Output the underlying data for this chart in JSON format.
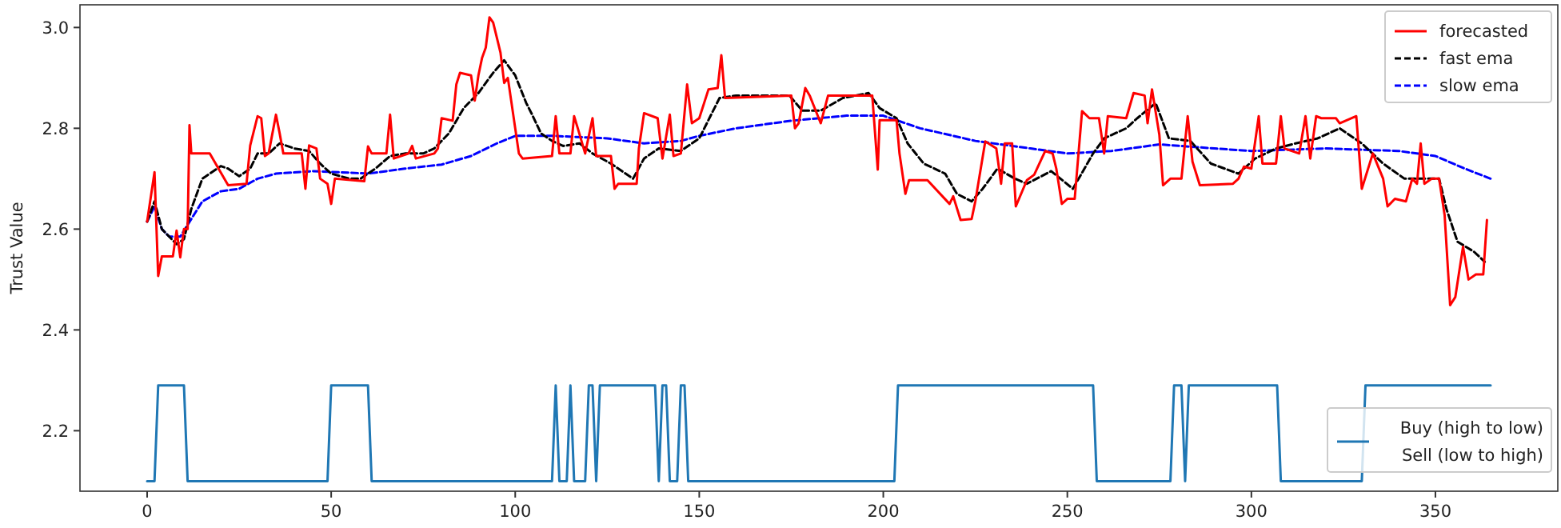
{
  "chart_data": {
    "type": "line",
    "ylabel": "Trust Value",
    "xlim": [
      -18.25,
      383.25
    ],
    "ylim": [
      2.08,
      3.045
    ],
    "xticks": [
      0,
      50,
      100,
      150,
      200,
      250,
      300,
      350
    ],
    "yticks": [
      {
        "value": 2.2,
        "label": "2.2"
      },
      {
        "value": 2.4,
        "label": "2.4"
      },
      {
        "value": 2.6,
        "label": "2.6"
      },
      {
        "value": 2.8,
        "label": "2.8"
      },
      {
        "value": 3,
        "label": "3.0"
      }
    ],
    "grid": false,
    "legend": "right",
    "marker": "none",
    "series": [
      {
        "name": "forecasted",
        "color": "#ff0000",
        "line_style": "solid",
        "x": [
          0,
          2,
          3,
          4,
          7,
          8,
          9,
          10,
          11,
          11.5,
          12,
          17,
          22,
          27,
          28,
          30,
          31,
          32,
          33,
          35,
          36,
          37,
          42,
          43,
          44,
          46,
          47,
          49,
          50,
          51,
          59,
          60,
          61,
          65,
          66,
          67,
          71,
          72,
          73,
          78,
          79,
          80,
          83,
          84,
          85,
          88,
          89,
          90,
          91,
          92,
          93,
          94,
          95,
          96,
          97,
          98,
          99,
          100,
          101,
          102,
          110,
          111,
          112,
          115,
          116,
          117,
          119,
          121,
          122,
          126,
          127,
          128,
          133,
          133.6,
          135,
          138.7,
          140,
          142,
          143,
          145,
          146.7,
          148,
          150,
          152.5,
          155,
          156,
          157,
          175,
          176,
          177,
          178.8,
          180,
          183,
          185,
          197,
          198.5,
          199,
          203.6,
          204.4,
          206,
          207,
          212,
          218,
          219,
          221,
          224,
          225,
          227.7,
          230.7,
          232,
          233,
          235,
          236,
          239,
          241,
          244,
          246,
          247,
          248.5,
          250,
          252,
          254,
          256,
          258.6,
          260,
          261,
          266,
          268,
          271,
          271.8,
          273,
          275,
          276,
          278,
          281,
          282.7,
          284,
          286,
          295,
          296.5,
          298,
          300,
          302,
          303,
          306.7,
          308,
          309,
          313,
          314.7,
          316,
          317.6,
          319,
          323,
          324,
          328.5,
          330,
          333,
          335.8,
          337,
          339,
          342,
          343.7,
          345,
          346,
          347,
          349,
          351,
          352.5,
          354,
          355.4,
          357.5,
          359,
          361,
          363,
          364
        ],
        "values": [
          2.615,
          2.713,
          2.507,
          2.546,
          2.546,
          2.597,
          2.544,
          2.6,
          2.6,
          2.806,
          2.75,
          2.75,
          2.687,
          2.69,
          2.766,
          2.824,
          2.82,
          2.745,
          2.75,
          2.827,
          2.79,
          2.75,
          2.75,
          2.68,
          2.766,
          2.76,
          2.7,
          2.69,
          2.65,
          2.7,
          2.695,
          2.764,
          2.75,
          2.75,
          2.827,
          2.74,
          2.75,
          2.765,
          2.74,
          2.75,
          2.76,
          2.82,
          2.815,
          2.887,
          2.91,
          2.905,
          2.855,
          2.905,
          2.94,
          2.96,
          3.02,
          3.01,
          2.98,
          2.95,
          2.89,
          2.9,
          2.85,
          2.8,
          2.75,
          2.74,
          2.745,
          2.824,
          2.75,
          2.75,
          2.824,
          2.8,
          2.75,
          2.82,
          2.745,
          2.745,
          2.68,
          2.69,
          2.69,
          2.76,
          2.83,
          2.82,
          2.74,
          2.827,
          2.745,
          2.75,
          2.887,
          2.81,
          2.82,
          2.877,
          2.88,
          2.945,
          2.86,
          2.865,
          2.8,
          2.81,
          2.88,
          2.865,
          2.81,
          2.865,
          2.865,
          2.718,
          2.816,
          2.816,
          2.75,
          2.67,
          2.697,
          2.697,
          2.65,
          2.665,
          2.618,
          2.62,
          2.655,
          2.774,
          2.76,
          2.69,
          2.77,
          2.77,
          2.645,
          2.697,
          2.708,
          2.755,
          2.75,
          2.72,
          2.65,
          2.66,
          2.66,
          2.834,
          2.82,
          2.82,
          2.75,
          2.824,
          2.82,
          2.87,
          2.865,
          2.81,
          2.877,
          2.787,
          2.687,
          2.7,
          2.7,
          2.824,
          2.734,
          2.687,
          2.69,
          2.7,
          2.724,
          2.72,
          2.824,
          2.73,
          2.73,
          2.824,
          2.76,
          2.75,
          2.824,
          2.74,
          2.824,
          2.82,
          2.82,
          2.81,
          2.824,
          2.68,
          2.75,
          2.7,
          2.645,
          2.66,
          2.655,
          2.7,
          2.69,
          2.77,
          2.69,
          2.7,
          2.7,
          2.628,
          2.449,
          2.465,
          2.565,
          2.5,
          2.51,
          2.51,
          2.618
        ]
      },
      {
        "name": "fast ema",
        "color": "#000000",
        "line_style": "dashed",
        "x": [
          0,
          2,
          4,
          8,
          10,
          12,
          15,
          20,
          22,
          25,
          28,
          30,
          33,
          36,
          40,
          44,
          47,
          50,
          55,
          58,
          62,
          66,
          70,
          75,
          78,
          82,
          86,
          90,
          94,
          97,
          100,
          103,
          104.4,
          107,
          110,
          113,
          117.5,
          121,
          126,
          132,
          135,
          139,
          145,
          150,
          155.5,
          160,
          174.5,
          178,
          183,
          189,
          196,
          199,
          203.6,
          206.6,
          211,
          216.8,
          220,
          224,
          227,
          231,
          235.8,
          239,
          245.6,
          251.5,
          257,
          260,
          266,
          269,
          274,
          277.6,
          283.4,
          289,
          296.5,
          301,
          306.7,
          312,
          318,
          324,
          330,
          335.8,
          341.6,
          347,
          351,
          353,
          356,
          360.5,
          363.4
        ],
        "values": [
          2.615,
          2.655,
          2.6,
          2.57,
          2.58,
          2.64,
          2.7,
          2.725,
          2.72,
          2.705,
          2.72,
          2.75,
          2.75,
          2.77,
          2.76,
          2.755,
          2.73,
          2.71,
          2.7,
          2.7,
          2.72,
          2.745,
          2.75,
          2.75,
          2.76,
          2.79,
          2.84,
          2.87,
          2.91,
          2.935,
          2.905,
          2.85,
          2.83,
          2.79,
          2.775,
          2.765,
          2.77,
          2.75,
          2.73,
          2.7,
          2.74,
          2.76,
          2.755,
          2.78,
          2.86,
          2.865,
          2.865,
          2.835,
          2.835,
          2.86,
          2.87,
          2.84,
          2.82,
          2.77,
          2.73,
          2.71,
          2.67,
          2.655,
          2.68,
          2.72,
          2.7,
          2.69,
          2.715,
          2.68,
          2.75,
          2.78,
          2.8,
          2.82,
          2.85,
          2.78,
          2.775,
          2.73,
          2.71,
          2.74,
          2.76,
          2.77,
          2.78,
          2.8,
          2.77,
          2.73,
          2.7,
          2.7,
          2.7,
          2.64,
          2.575,
          2.555,
          2.535
        ]
      },
      {
        "name": "slow ema",
        "color": "#0000ff",
        "line_style": "dashed",
        "x": [
          0,
          2,
          4,
          6,
          9,
          12,
          15,
          20,
          25,
          30,
          35,
          45,
          55,
          60,
          70,
          80,
          88,
          95,
          100,
          110,
          125,
          135,
          145,
          150,
          160,
          175,
          190,
          200,
          210,
          225,
          240,
          250,
          262,
          275,
          290,
          300,
          320,
          340,
          350,
          358,
          365
        ],
        "values": [
          2.615,
          2.645,
          2.6,
          2.585,
          2.585,
          2.62,
          2.655,
          2.675,
          2.68,
          2.7,
          2.71,
          2.715,
          2.712,
          2.71,
          2.72,
          2.728,
          2.745,
          2.77,
          2.785,
          2.785,
          2.78,
          2.77,
          2.775,
          2.785,
          2.8,
          2.815,
          2.825,
          2.825,
          2.8,
          2.775,
          2.76,
          2.75,
          2.755,
          2.768,
          2.76,
          2.755,
          2.76,
          2.755,
          2.745,
          2.72,
          2.7
        ]
      },
      {
        "name": "Buy (high to low)\n Sell (low to high)",
        "type": "step",
        "color": "#1f77b4",
        "line_style": "solid",
        "x": [
          0,
          2,
          3,
          10,
          11,
          49,
          50,
          60,
          61,
          110,
          111,
          112,
          114,
          115,
          116,
          119,
          120,
          121,
          122,
          123,
          138,
          139,
          140,
          141,
          142,
          144,
          145,
          146,
          147,
          203,
          204,
          257,
          258,
          278,
          279,
          281,
          282,
          283,
          307,
          308,
          330,
          331,
          365
        ],
        "values": [
          2.1,
          2.1,
          2.29,
          2.29,
          2.1,
          2.1,
          2.29,
          2.29,
          2.1,
          2.1,
          2.29,
          2.1,
          2.1,
          2.29,
          2.1,
          2.1,
          2.29,
          2.29,
          2.1,
          2.29,
          2.29,
          2.1,
          2.29,
          2.29,
          2.1,
          2.1,
          2.29,
          2.29,
          2.1,
          2.1,
          2.29,
          2.29,
          2.1,
          2.1,
          2.29,
          2.29,
          2.1,
          2.29,
          2.29,
          2.1,
          2.1,
          2.29,
          2.29
        ]
      }
    ]
  }
}
